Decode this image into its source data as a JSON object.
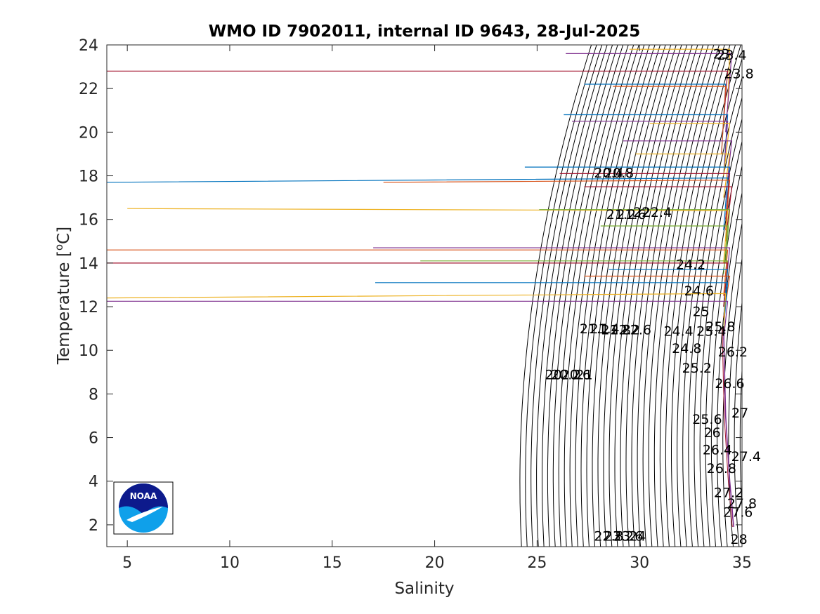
{
  "chart_data": {
    "type": "line",
    "title": "WMO ID 7902011, internal ID 9643, 28-Jul-2025",
    "xlabel": "Salinity",
    "ylabel_main": "Temperature [",
    "ylabel_sup": "o",
    "ylabel_unit": "C]",
    "xlim": [
      4,
      35
    ],
    "ylim": [
      1,
      24
    ],
    "xticks": [
      5,
      10,
      15,
      20,
      25,
      30,
      35
    ],
    "yticks": [
      2,
      4,
      6,
      8,
      10,
      12,
      14,
      16,
      18,
      20,
      22,
      24
    ],
    "grid": false,
    "legend": "none",
    "logo_text": "NOAA",
    "colors": {
      "isopycnal": "#000000",
      "axes": "#262626",
      "profiles": [
        "#0072BD",
        "#D95319",
        "#EDB120",
        "#7E2F8E",
        "#77AC30",
        "#4DBEEE",
        "#A2142F"
      ],
      "logo_dark": "#0d1a8c",
      "logo_light": "#0fa0ea"
    },
    "isopycnals": {
      "sigma_start": 18.6,
      "sigma_end": 28.0,
      "sigma_step": 0.2
    },
    "contour_labels": [
      {
        "text": "23.4",
        "s": 34.5,
        "t": 23.5
      },
      {
        "text": "23",
        "s": 34.0,
        "t": 23.55
      },
      {
        "text": "23.8",
        "s": 34.85,
        "t": 22.65
      },
      {
        "text": "20.4",
        "s": 28.5,
        "t": 18.1
      },
      {
        "text": "20.8",
        "s": 29.0,
        "t": 18.1
      },
      {
        "text": "21.2",
        "s": 29.1,
        "t": 16.2
      },
      {
        "text": "21.6",
        "s": 29.6,
        "t": 16.2
      },
      {
        "text": "22",
        "s": 30.1,
        "t": 16.3
      },
      {
        "text": "22.4",
        "s": 30.85,
        "t": 16.3
      },
      {
        "text": "24.2",
        "s": 32.5,
        "t": 13.9
      },
      {
        "text": "24.6",
        "s": 32.9,
        "t": 12.7
      },
      {
        "text": "25",
        "s": 33.0,
        "t": 11.75
      },
      {
        "text": "25.8",
        "s": 33.95,
        "t": 11.05
      },
      {
        "text": "25.4",
        "s": 33.5,
        "t": 10.85
      },
      {
        "text": "24.4",
        "s": 31.9,
        "t": 10.85
      },
      {
        "text": "21.1",
        "s": 27.8,
        "t": 10.95
      },
      {
        "text": "21.4",
        "s": 28.3,
        "t": 10.95
      },
      {
        "text": "21.8",
        "s": 28.85,
        "t": 10.9
      },
      {
        "text": "22.2",
        "s": 29.3,
        "t": 10.9
      },
      {
        "text": "22.6",
        "s": 29.85,
        "t": 10.9
      },
      {
        "text": "24.8",
        "s": 32.3,
        "t": 10.05
      },
      {
        "text": "26.2",
        "s": 34.55,
        "t": 9.9
      },
      {
        "text": "25.2",
        "s": 32.8,
        "t": 9.15
      },
      {
        "text": "20",
        "s": 25.8,
        "t": 8.85
      },
      {
        "text": "20.2",
        "s": 26.4,
        "t": 8.85
      },
      {
        "text": "20.6",
        "s": 26.9,
        "t": 8.85
      },
      {
        "text": "21",
        "s": 27.3,
        "t": 8.85
      },
      {
        "text": "26.6",
        "s": 34.4,
        "t": 8.45
      },
      {
        "text": "27",
        "s": 34.9,
        "t": 7.1
      },
      {
        "text": "25.6",
        "s": 33.3,
        "t": 6.8
      },
      {
        "text": "26",
        "s": 33.55,
        "t": 6.2
      },
      {
        "text": "26.4",
        "s": 33.8,
        "t": 5.4
      },
      {
        "text": "27.4",
        "s": 35.2,
        "t": 5.1
      },
      {
        "text": "26.8",
        "s": 34.0,
        "t": 4.55
      },
      {
        "text": "27.2",
        "s": 34.35,
        "t": 3.45
      },
      {
        "text": "27.8",
        "s": 35.0,
        "t": 2.95
      },
      {
        "text": "27.6",
        "s": 34.8,
        "t": 2.55
      },
      {
        "text": "22.8",
        "s": 28.5,
        "t": 1.45
      },
      {
        "text": "23.2",
        "s": 29.0,
        "t": 1.45
      },
      {
        "text": "23.6",
        "s": 29.45,
        "t": 1.45
      },
      {
        "text": "24",
        "s": 29.9,
        "t": 1.45
      },
      {
        "text": "28",
        "s": 34.85,
        "t": 1.3
      }
    ],
    "series": [
      {
        "color": "#EDB120",
        "surface": [
          29.5,
          23.8
        ],
        "base": [
          34.4,
          23.8
        ],
        "mid": [
          34.3,
          21.0
        ]
      },
      {
        "color": "#7E2F8E",
        "surface": [
          26.4,
          23.6
        ],
        "base": [
          34.5,
          23.6
        ],
        "mid": [
          34.2,
          20.0
        ]
      },
      {
        "color": "#A2142F",
        "surface": [
          4.0,
          22.8
        ],
        "base": [
          34.3,
          22.8
        ],
        "mid": [
          34.1,
          20.5
        ]
      },
      {
        "color": "#0072BD",
        "surface": [
          27.3,
          22.2
        ],
        "base": [
          34.2,
          22.2
        ],
        "mid": [
          34.0,
          19.0
        ]
      },
      {
        "color": "#D95319",
        "surface": [
          28.7,
          22.1
        ],
        "base": [
          34.2,
          22.1
        ],
        "mid": [
          34.0,
          19.0
        ]
      },
      {
        "color": "#0072BD",
        "surface": [
          26.3,
          20.8
        ],
        "base": [
          34.3,
          20.8
        ],
        "mid": [
          34.1,
          18.0
        ]
      },
      {
        "color": "#7E2F8E",
        "surface": [
          26.7,
          20.5
        ],
        "base": [
          34.3,
          20.5
        ],
        "mid": [
          34.1,
          18.0
        ]
      },
      {
        "color": "#EDB120",
        "surface": [
          30.5,
          20.4
        ],
        "base": [
          34.4,
          20.4
        ],
        "mid": [
          34.1,
          18.0
        ]
      },
      {
        "color": "#7E2F8E",
        "surface": [
          29.2,
          19.6
        ],
        "base": [
          34.5,
          19.6
        ],
        "mid": [
          34.2,
          17.0
        ]
      },
      {
        "color": "#EDB120",
        "surface": [
          29.8,
          19.0
        ],
        "base": [
          34.4,
          19.0
        ],
        "mid": [
          34.1,
          17.0
        ]
      },
      {
        "color": "#0072BD",
        "surface": [
          24.4,
          18.4
        ],
        "base": [
          34.4,
          18.4
        ],
        "mid": [
          34.2,
          16.0
        ]
      },
      {
        "color": "#A2142F",
        "surface": [
          26.1,
          18.1
        ],
        "base": [
          34.4,
          18.1
        ],
        "mid": [
          34.2,
          16.0
        ]
      },
      {
        "color": "#0072BD",
        "surface": [
          4.0,
          17.7
        ],
        "base": [
          34.3,
          17.9
        ],
        "mid": [
          34.1,
          15.5
        ]
      },
      {
        "color": "#D95319",
        "surface": [
          17.5,
          17.7
        ],
        "base": [
          34.4,
          17.8
        ],
        "mid": [
          34.2,
          15.5
        ]
      },
      {
        "color": "#A2142F",
        "surface": [
          27.3,
          17.5
        ],
        "base": [
          34.5,
          17.5
        ],
        "mid": [
          34.2,
          15.0
        ]
      },
      {
        "color": "#EDB120",
        "surface": [
          5.0,
          16.5
        ],
        "base": [
          34.3,
          16.4
        ],
        "mid": [
          34.1,
          14.0
        ]
      },
      {
        "color": "#77AC30",
        "surface": [
          25.1,
          16.45
        ],
        "base": [
          34.4,
          16.45
        ],
        "mid": [
          34.2,
          14.0
        ]
      },
      {
        "color": "#77AC30",
        "surface": [
          28.1,
          15.7
        ],
        "base": [
          34.3,
          15.7
        ],
        "mid": [
          34.1,
          13.5
        ]
      },
      {
        "color": "#7E2F8E",
        "surface": [
          17.0,
          14.7
        ],
        "base": [
          34.4,
          14.7
        ],
        "mid": [
          34.2,
          12.8
        ]
      },
      {
        "color": "#D95319",
        "surface": [
          4.0,
          14.6
        ],
        "base": [
          34.3,
          14.6
        ],
        "mid": [
          34.1,
          12.5
        ]
      },
      {
        "color": "#77AC30",
        "surface": [
          19.3,
          14.1
        ],
        "base": [
          34.3,
          14.1
        ],
        "mid": [
          34.1,
          12.0
        ]
      },
      {
        "color": "#A2142F",
        "surface": [
          4.0,
          14.0
        ],
        "base": [
          34.3,
          14.0
        ],
        "mid": [
          34.1,
          12.0
        ]
      },
      {
        "color": "#0072BD",
        "surface": [
          28.5,
          13.7
        ],
        "base": [
          34.3,
          13.7
        ],
        "mid": [
          34.1,
          11.5
        ]
      },
      {
        "color": "#D95319",
        "surface": [
          27.3,
          13.4
        ],
        "base": [
          34.4,
          13.4
        ],
        "mid": [
          34.1,
          11.5
        ]
      },
      {
        "color": "#0072BD",
        "surface": [
          17.1,
          13.1
        ],
        "base": [
          34.3,
          13.1
        ],
        "mid": [
          34.1,
          11.0
        ]
      },
      {
        "color": "#EDB120",
        "surface": [
          4.0,
          12.4
        ],
        "base": [
          34.2,
          12.6
        ],
        "mid": [
          34.1,
          10.8
        ]
      },
      {
        "color": "#7E2F8E",
        "surface": [
          4.0,
          12.25
        ],
        "base": [
          34.3,
          12.25
        ],
        "mid": [
          34.1,
          10.5
        ]
      }
    ],
    "deep_profile": [
      [
        34.1,
        11.0
      ],
      [
        34.15,
        9.0
      ],
      [
        34.2,
        7.0
      ],
      [
        34.3,
        5.5
      ],
      [
        34.4,
        4.0
      ],
      [
        34.5,
        3.0
      ],
      [
        34.55,
        2.3
      ],
      [
        34.6,
        1.9
      ]
    ]
  }
}
